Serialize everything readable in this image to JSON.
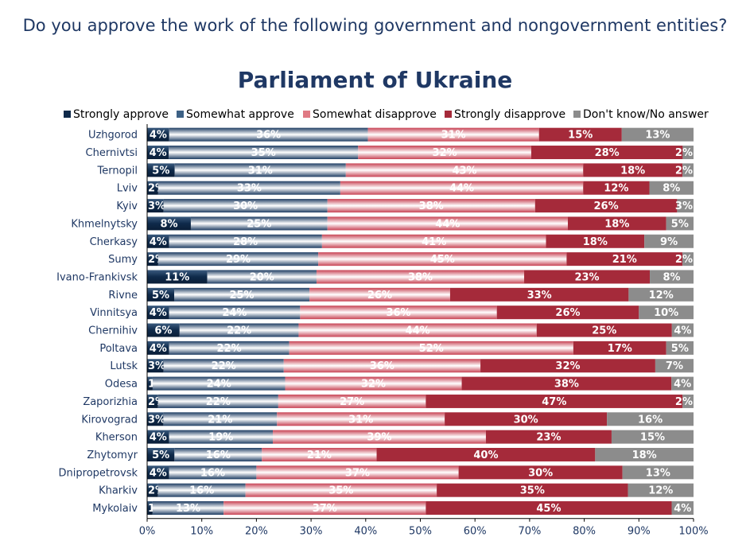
{
  "question": "Do you approve the work of the following government and nongovernment entities?",
  "chart_data": {
    "type": "bar",
    "orientation": "horizontal",
    "stacked": "percent",
    "title": "Parliament of Ukraine",
    "legend_position": "top",
    "xlim": [
      0,
      100
    ],
    "x_ticks": [
      "0%",
      "10%",
      "20%",
      "30%",
      "40%",
      "50%",
      "60%",
      "70%",
      "80%",
      "90%",
      "100%"
    ],
    "categories": [
      "Uzhgorod",
      "Chernivtsi",
      "Ternopil",
      "Lviv",
      "Kyiv",
      "Khmelnytsky",
      "Cherkasy",
      "Sumy",
      "Ivano-Frankivsk",
      "Rivne",
      "Vinnitsya",
      "Chernihiv",
      "Poltava",
      "Lutsk",
      "Odesa",
      "Zaporizhia",
      "Kirovograd",
      "Kherson",
      "Zhytomyr",
      "Dnipropetrovsk",
      "Kharkiv",
      "Mykolaiv"
    ],
    "series": [
      {
        "name": "Strongly approve",
        "color": "#0f2a4a",
        "values": [
          4,
          4,
          5,
          2,
          3,
          8,
          4,
          2,
          11,
          5,
          4,
          6,
          4,
          3,
          1,
          2,
          3,
          4,
          5,
          4,
          2,
          1
        ]
      },
      {
        "name": "Somewhat approve",
        "color": "#3d6185",
        "values": [
          36,
          35,
          31,
          33,
          30,
          25,
          28,
          29,
          20,
          25,
          24,
          22,
          22,
          22,
          24,
          22,
          21,
          19,
          16,
          16,
          16,
          13
        ]
      },
      {
        "name": "Somewhat disapprove",
        "color": "#e07a84",
        "values": [
          31,
          32,
          43,
          44,
          38,
          44,
          41,
          45,
          38,
          26,
          36,
          44,
          52,
          36,
          32,
          27,
          31,
          39,
          21,
          37,
          35,
          37
        ]
      },
      {
        "name": "Strongly disapprove",
        "color": "#a52a3a",
        "values": [
          15,
          28,
          18,
          12,
          26,
          18,
          18,
          21,
          23,
          33,
          26,
          25,
          17,
          32,
          38,
          47,
          30,
          23,
          40,
          30,
          35,
          45
        ]
      },
      {
        "name": "Don't know/No answer",
        "color": "#8c8c8c",
        "values": [
          13,
          2,
          2,
          8,
          3,
          5,
          9,
          2,
          8,
          12,
          10,
          4,
          5,
          7,
          4,
          2,
          16,
          15,
          18,
          13,
          12,
          4
        ]
      }
    ]
  }
}
